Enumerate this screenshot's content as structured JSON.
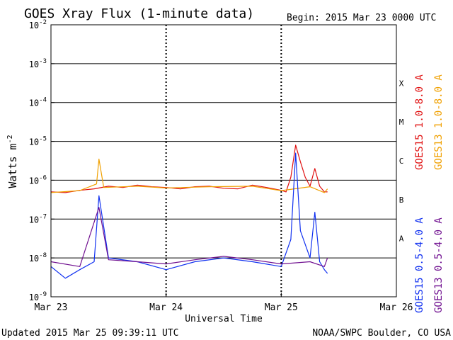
{
  "header": {
    "title": "GOES Xray Flux (1-minute data)",
    "begin": "Begin:  2015 Mar 23 0000 UTC"
  },
  "footer": {
    "updated": "Updated 2015 Mar 25 09:39:11 UTC",
    "credit": "NOAA/SWPC Boulder, CO USA"
  },
  "chart_data": {
    "type": "line",
    "title": "GOES Xray Flux (1-minute data)",
    "xlabel": "Universal Time",
    "ylabel": "Watts m",
    "ylabel_superscript": "-2",
    "yscale": "log",
    "ylim": [
      1e-09,
      0.01
    ],
    "xlim": [
      "2015-03-23",
      "2015-03-26"
    ],
    "x_ticks": [
      "Mar 23",
      "Mar 24",
      "Mar 25",
      "Mar 26"
    ],
    "y_ticks": [
      {
        "base": "10",
        "exp": "-9"
      },
      {
        "base": "10",
        "exp": "-8"
      },
      {
        "base": "10",
        "exp": "-7"
      },
      {
        "base": "10",
        "exp": "-6"
      },
      {
        "base": "10",
        "exp": "-5"
      },
      {
        "base": "10",
        "exp": "-4"
      },
      {
        "base": "10",
        "exp": "-3"
      },
      {
        "base": "10",
        "exp": "-2"
      }
    ],
    "flare_classes": [
      {
        "label": "A",
        "exp": -8
      },
      {
        "label": "B",
        "exp": -7
      },
      {
        "label": "C",
        "exp": -6
      },
      {
        "label": "M",
        "exp": -5
      },
      {
        "label": "X",
        "exp": -4
      }
    ],
    "grid": true,
    "legend_placement": "right",
    "series": [
      {
        "name": "GOES15 1.0-8.0 A",
        "color": "#e01010",
        "x": [
          "2015-03-23 00:00",
          "2015-03-23 03:00",
          "2015-03-23 06:00",
          "2015-03-23 09:00",
          "2015-03-23 12:00",
          "2015-03-23 15:00",
          "2015-03-23 18:00",
          "2015-03-23 21:00",
          "2015-03-24 00:00",
          "2015-03-24 03:00",
          "2015-03-24 06:00",
          "2015-03-24 09:00",
          "2015-03-24 12:00",
          "2015-03-24 15:00",
          "2015-03-24 18:00",
          "2015-03-24 21:00",
          "2015-03-25 00:00",
          "2015-03-25 01:00",
          "2015-03-25 02:00",
          "2015-03-25 03:00",
          "2015-03-25 04:00",
          "2015-03-25 05:00",
          "2015-03-25 06:00",
          "2015-03-25 07:00",
          "2015-03-25 08:00",
          "2015-03-25 09:00",
          "2015-03-25 09:39"
        ],
        "values": [
          5e-07,
          4.8e-07,
          5.5e-07,
          6e-07,
          7e-07,
          6.5e-07,
          7.5e-07,
          6.8e-07,
          6.5e-07,
          6e-07,
          6.8e-07,
          7e-07,
          6.2e-07,
          6e-07,
          7.5e-07,
          6.5e-07,
          5.5e-07,
          5e-07,
          1.2e-06,
          8e-06,
          3e-06,
          1.2e-06,
          7e-07,
          2e-06,
          7e-07,
          5e-07,
          5e-07
        ]
      },
      {
        "name": "GOES13 1.0-8.0 A",
        "color": "#f0a000",
        "x": [
          "2015-03-23 00:00",
          "2015-03-23 06:00",
          "2015-03-23 09:30",
          "2015-03-23 10:00",
          "2015-03-23 11:00",
          "2015-03-23 18:00",
          "2015-03-24 00:00",
          "2015-03-24 09:00",
          "2015-03-24 18:00",
          "2015-03-25 00:00",
          "2015-03-25 06:00",
          "2015-03-25 09:00",
          "2015-03-25 09:39"
        ],
        "values": [
          4.8e-07,
          5.4e-07,
          8e-07,
          3.5e-06,
          6.5e-07,
          7e-07,
          6.3e-07,
          6.8e-07,
          7e-07,
          5.4e-07,
          6.8e-07,
          4.8e-07,
          6e-07
        ]
      },
      {
        "name": "GOES15 0.5-4.0 A",
        "color": "#1030f0",
        "x": [
          "2015-03-23 00:00",
          "2015-03-23 03:00",
          "2015-03-23 06:00",
          "2015-03-23 09:00",
          "2015-03-23 10:00",
          "2015-03-23 12:00",
          "2015-03-23 18:00",
          "2015-03-24 00:00",
          "2015-03-24 06:00",
          "2015-03-24 12:00",
          "2015-03-24 18:00",
          "2015-03-25 00:00",
          "2015-03-25 02:00",
          "2015-03-25 03:00",
          "2015-03-25 04:00",
          "2015-03-25 06:00",
          "2015-03-25 07:00",
          "2015-03-25 08:00",
          "2015-03-25 09:00",
          "2015-03-25 09:39"
        ],
        "values": [
          6e-09,
          3e-09,
          5e-09,
          8e-09,
          4e-07,
          1e-08,
          8e-09,
          5e-09,
          8e-09,
          1e-08,
          8e-09,
          6e-09,
          3e-08,
          5e-06,
          5e-08,
          1e-08,
          1.5e-07,
          8e-09,
          5e-09,
          4e-09
        ]
      },
      {
        "name": "GOES13 0.5-4.0 A",
        "color": "#701090",
        "x": [
          "2015-03-23 00:00",
          "2015-03-23 06:00",
          "2015-03-23 10:00",
          "2015-03-23 12:00",
          "2015-03-23 18:00",
          "2015-03-24 00:00",
          "2015-03-24 06:00",
          "2015-03-24 12:00",
          "2015-03-24 18:00",
          "2015-03-25 00:00",
          "2015-03-25 06:00",
          "2015-03-25 09:00",
          "2015-03-25 09:39"
        ],
        "values": [
          8e-09,
          6e-09,
          2e-07,
          9e-09,
          8e-09,
          7e-09,
          9e-09,
          1.1e-08,
          9e-09,
          7e-09,
          8e-09,
          6e-09,
          1e-08
        ]
      }
    ]
  }
}
